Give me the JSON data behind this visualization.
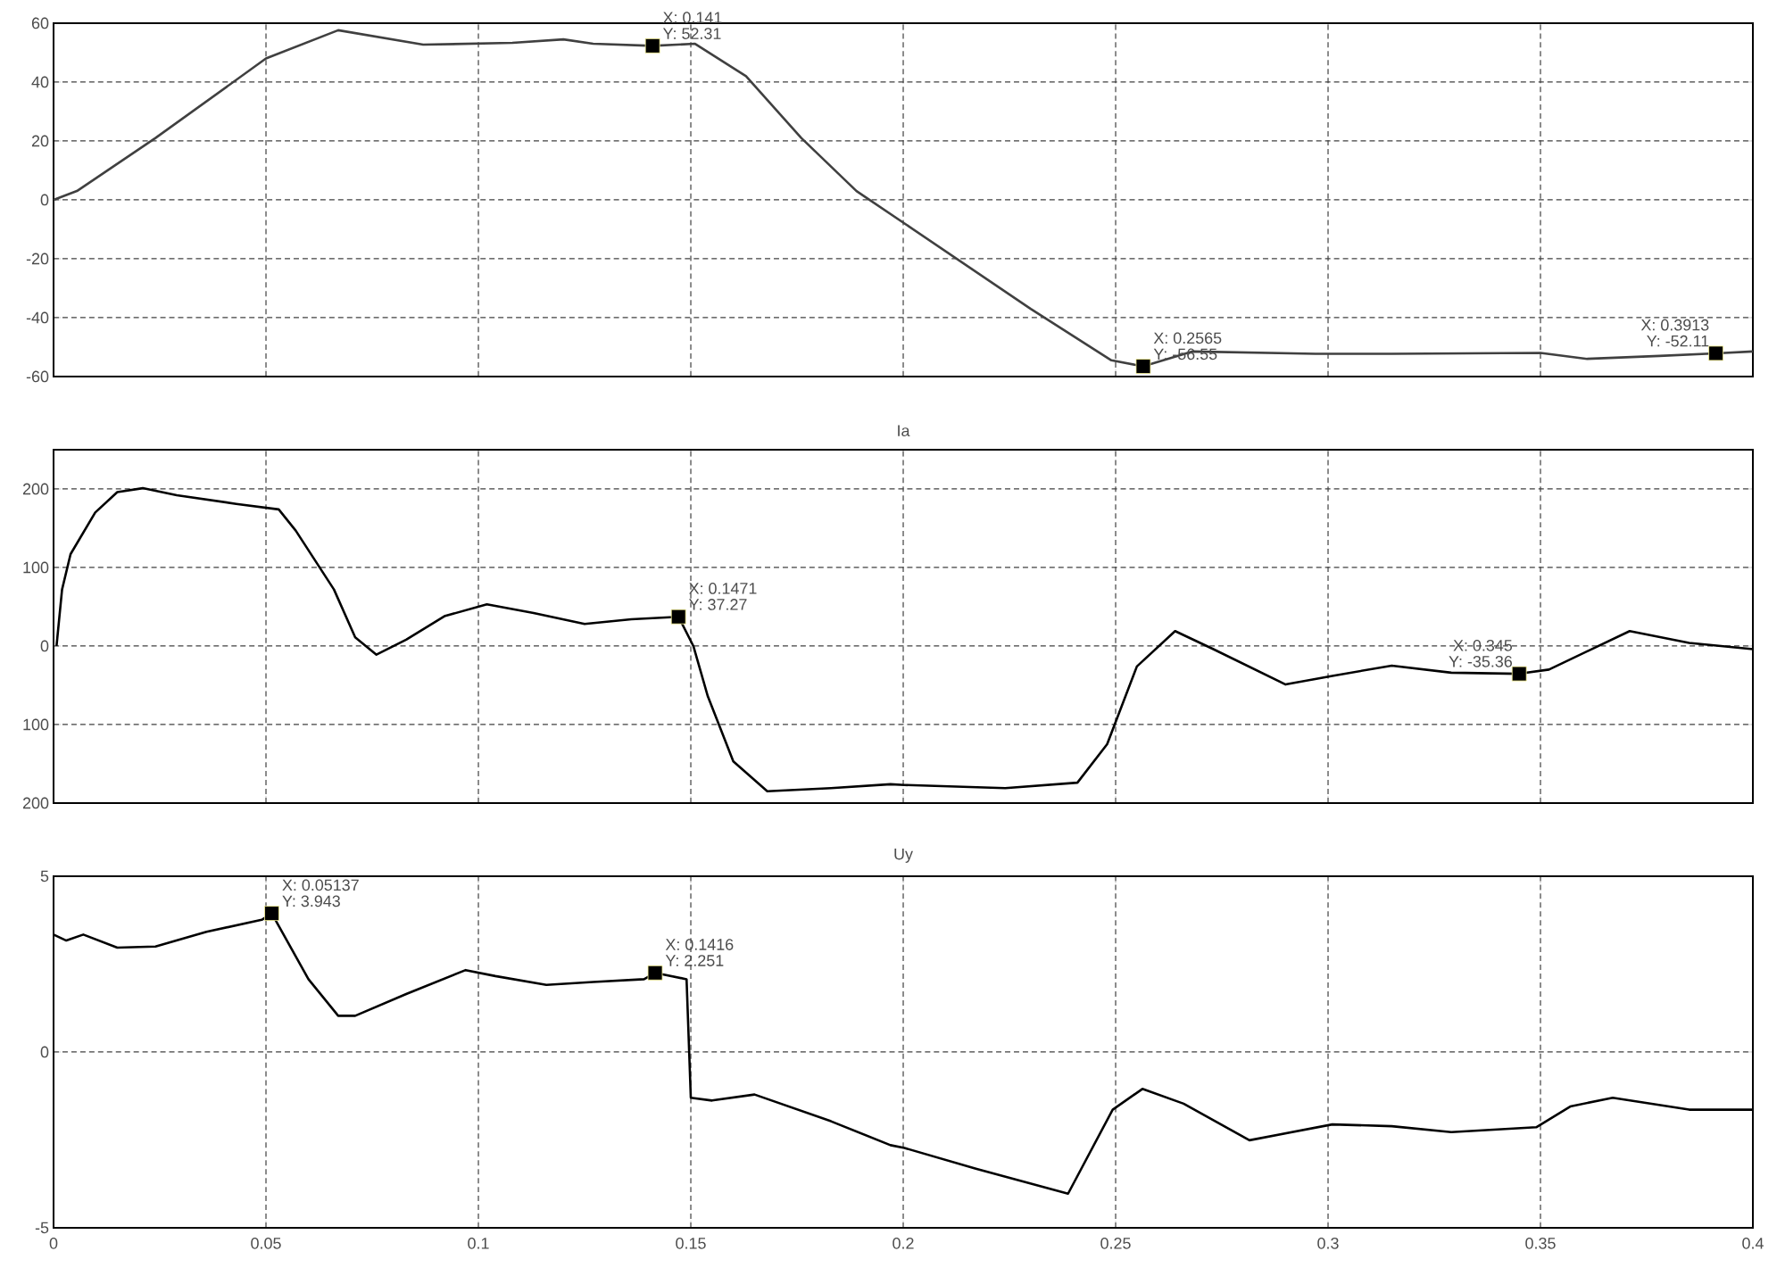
{
  "chart_data": [
    {
      "type": "line",
      "xlim": [
        0,
        0.4
      ],
      "ylim": [
        -60,
        60
      ],
      "xticks": [
        0,
        0.05,
        0.1,
        0.15,
        0.2,
        0.25,
        0.3,
        0.35,
        0.4
      ],
      "yticks": [
        -60,
        -40,
        -20,
        0,
        20,
        40,
        60
      ],
      "grid": true,
      "tick_labels": "y",
      "series": [
        {
          "type": "line",
          "color": "#404040",
          "x": [
            0,
            0.0055,
            0.024,
            0.05,
            0.067,
            0.087,
            0.108,
            0.12,
            0.127,
            0.141,
            0.151,
            0.163,
            0.176,
            0.189,
            0.23,
            0.249,
            0.2565,
            0.268,
            0.297,
            0.315,
            0.35,
            0.361,
            0.378,
            0.3913,
            0.4
          ],
          "values": [
            0,
            3,
            21,
            48,
            57.6,
            52.7,
            53.3,
            54.5,
            53,
            52.31,
            53,
            42,
            21,
            3,
            -37,
            -54.5,
            -56.55,
            -51.5,
            -52.3,
            -52.3,
            -52,
            -54,
            -53,
            -52.11,
            -51.5
          ]
        },
        {
          "type": "scatter",
          "marker": "square",
          "color": "#000000",
          "x": [
            0.141,
            0.2565,
            0.3913
          ],
          "values": [
            52.31,
            -56.55,
            -52.11
          ]
        }
      ],
      "annotations": [
        {
          "text": "X: 0.141",
          "x": 0.141,
          "y": 52.31
        },
        {
          "text": "Y: 52.31",
          "x": 0.141,
          "y": 52.31
        },
        {
          "text": "X: 0.2565",
          "x": 0.2565,
          "y": -56.55
        },
        {
          "text": "Y: -56.55",
          "x": 0.2565,
          "y": -56.55
        },
        {
          "text": "X: 0.3913",
          "x": 0.3913,
          "y": -52.11
        },
        {
          "text": "Y: -52.11",
          "x": 0.3913,
          "y": -52.11
        }
      ]
    },
    {
      "type": "line",
      "title": "Ia",
      "xlim": [
        0,
        0.4
      ],
      "ylim": [
        -200,
        250
      ],
      "xticks": [
        0,
        0.05,
        0.1,
        0.15,
        0.2,
        0.25,
        0.3,
        0.35,
        0.4
      ],
      "yticks": [
        {
          "value": -200,
          "label": "200"
        },
        {
          "value": -100,
          "label": "100"
        },
        0,
        100,
        200
      ],
      "grid": true,
      "tick_labels": "y",
      "series": [
        {
          "type": "line",
          "color": "#000000",
          "x": [
            0.0007,
            0.002,
            0.004,
            0.0098,
            0.015,
            0.021,
            0.029,
            0.043,
            0.053,
            0.057,
            0.066,
            0.071,
            0.076,
            0.083,
            0.092,
            0.102,
            0.113,
            0.125,
            0.136,
            0.1471,
            0.1506,
            0.154,
            0.16,
            0.168,
            0.183,
            0.197,
            0.2003,
            0.224,
            0.241,
            0.248,
            0.255,
            0.264,
            0.273,
            0.29,
            0.301,
            0.315,
            0.329,
            0.345,
            0.352,
            0.371,
            0.385,
            0.4
          ],
          "values": [
            0,
            72,
            117,
            170,
            196,
            201,
            192,
            181,
            174,
            147,
            72,
            11,
            -11,
            8,
            38,
            53,
            42,
            28,
            34,
            37.27,
            0,
            -64,
            -147,
            -185,
            -181,
            -176,
            -177,
            -181,
            -174,
            -125,
            -26,
            19,
            -4,
            -49,
            -38,
            -25,
            -34,
            -35.36,
            -30,
            19,
            4,
            -4
          ]
        },
        {
          "type": "scatter",
          "marker": "square",
          "color": "#000000",
          "x": [
            0.1471,
            0.345
          ],
          "values": [
            37.27,
            -35.36
          ]
        }
      ],
      "annotations": [
        {
          "text": "X: 0.1471",
          "x": 0.1471,
          "y": 37.27
        },
        {
          "text": "Y: 37.27",
          "x": 0.1471,
          "y": 37.27
        },
        {
          "text": "X: 0.345",
          "x": 0.345,
          "y": -35.36
        },
        {
          "text": "Y: -35.36",
          "x": 0.345,
          "y": -35.36
        }
      ]
    },
    {
      "type": "line",
      "title": "Uy",
      "xlim": [
        0,
        0.4
      ],
      "ylim": [
        -5,
        5
      ],
      "xticks": [
        0,
        0.05,
        0.1,
        0.15,
        0.2,
        0.25,
        0.3,
        0.35,
        0.4
      ],
      "yticks": [
        -5,
        0,
        5
      ],
      "grid": true,
      "series": [
        {
          "type": "line",
          "color": "#000000",
          "x": [
            0,
            0.003,
            0.007,
            0.015,
            0.024,
            0.036,
            0.049,
            0.05137,
            0.053,
            0.06,
            0.067,
            0.071,
            0.083,
            0.097,
            0.104,
            0.116,
            0.127,
            0.139,
            0.1416,
            0.149,
            0.15,
            0.155,
            0.165,
            0.183,
            0.197,
            0.2003,
            0.2171,
            0.2388,
            0.2493,
            0.2563,
            0.266,
            0.2815,
            0.301,
            0.315,
            0.329,
            0.349,
            0.357,
            0.367,
            0.385,
            0.4
          ],
          "values": [
            3.34,
            3.17,
            3.34,
            2.97,
            3.0,
            3.42,
            3.76,
            3.943,
            3.59,
            2.07,
            1.03,
            1.03,
            1.65,
            2.33,
            2.16,
            1.91,
            1.99,
            2.07,
            2.251,
            2.07,
            -1.3,
            -1.38,
            -1.21,
            -1.97,
            -2.65,
            -2.73,
            -3.32,
            -4.03,
            -1.64,
            -1.05,
            -1.47,
            -2.51,
            -2.06,
            -2.11,
            -2.28,
            -2.14,
            -1.55,
            -1.3,
            -1.64,
            -1.64
          ]
        },
        {
          "type": "scatter",
          "marker": "square",
          "color": "#000000",
          "x": [
            0.05137,
            0.1416
          ],
          "values": [
            3.943,
            2.251
          ]
        }
      ],
      "annotations": [
        {
          "text": "X: 0.05137",
          "x": 0.05137,
          "y": 3.943
        },
        {
          "text": "Y: 3.943",
          "x": 0.05137,
          "y": 3.943
        },
        {
          "text": "X: 0.1416",
          "x": 0.1416,
          "y": 2.251
        },
        {
          "text": "Y: 2.251",
          "x": 0.1416,
          "y": 2.251
        }
      ]
    }
  ]
}
